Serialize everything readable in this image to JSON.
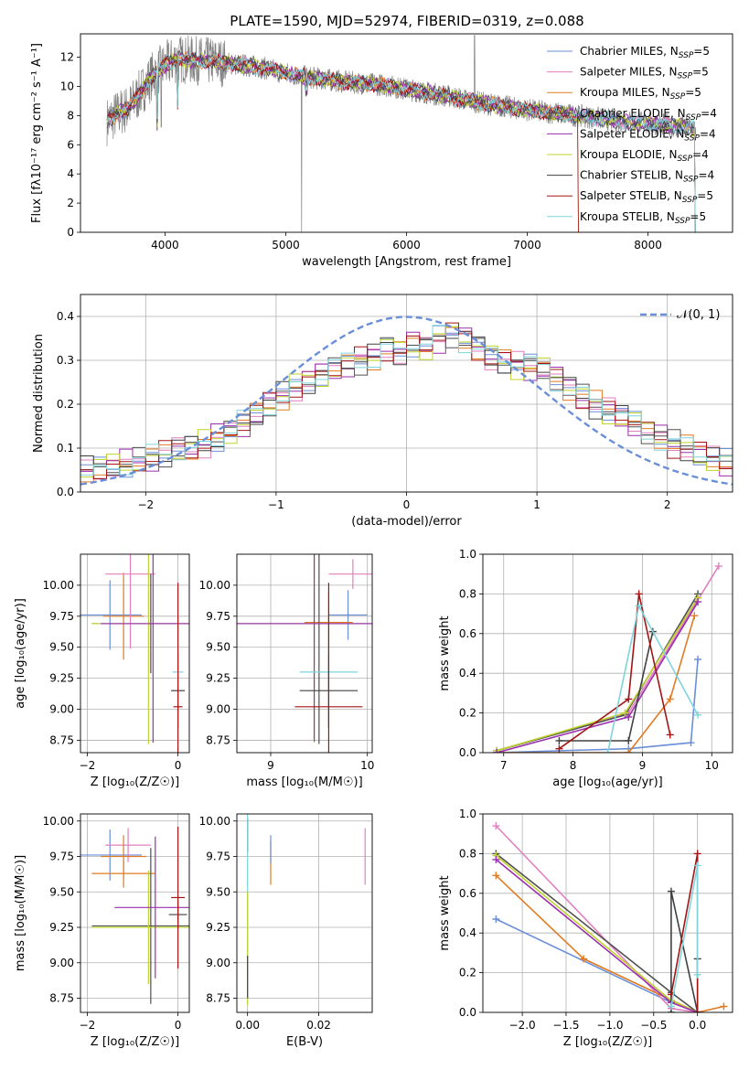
{
  "figure": {
    "title": "PLATE=1590, MJD=52974, FIBERID=0319, z=0.088"
  },
  "colors": [
    "#6a8fd8",
    "#e27fbf",
    "#e07b22",
    "#505050",
    "#9b2fae",
    "#bfd32e",
    "#404040",
    "#a31515",
    "#7fd4dc"
  ],
  "chart_data": [
    {
      "id": "spectrum",
      "type": "line",
      "xlabel": "wavelength [Angstrom, rest frame]",
      "ylabel": "Flux [fλ10⁻¹⁷ erg cm⁻² s⁻¹ A⁻¹]",
      "xlim": [
        3300,
        8700
      ],
      "ylim": [
        0,
        13.6
      ],
      "xticks": [
        4000,
        5000,
        6000,
        7000,
        8000
      ],
      "yticks": [
        0,
        2,
        4,
        6,
        8,
        10,
        12
      ],
      "grid": false,
      "legend": "top-right",
      "data_color": "#808080",
      "continuum": {
        "x": [
          3520,
          3600,
          3700,
          3800,
          3900,
          4000,
          4100,
          4200,
          4400,
          4600,
          4800,
          5000,
          5200,
          5500,
          5800,
          6000,
          6300,
          6600,
          6900,
          7200,
          7500,
          7800,
          8100,
          8400
        ],
        "y": [
          7.6,
          8.1,
          8.5,
          9.6,
          10.8,
          11.4,
          11.9,
          11.8,
          11.7,
          11.5,
          11.3,
          10.9,
          10.6,
          10.3,
          10.1,
          9.8,
          9.4,
          8.9,
          8.5,
          8.2,
          7.9,
          7.6,
          7.4,
          7.1
        ]
      },
      "series": [
        {
          "name": "Chabrier MILES, N_SSP=5"
        },
        {
          "name": "Salpeter MILES, N_SSP=5"
        },
        {
          "name": "Kroupa MILES, N_SSP=5"
        },
        {
          "name": "Chabrier ELODIE, N_SSP=4"
        },
        {
          "name": "Salpeter ELODIE, N_SSP=4"
        },
        {
          "name": "Kroupa ELODIE, N_SSP=4"
        },
        {
          "name": "Chabrier STELIB, N_SSP=4"
        },
        {
          "name": "Salpeter STELIB, N_SSP=5"
        },
        {
          "name": "Kroupa STELIB, N_SSP=5"
        }
      ],
      "legend_entries": [
        {
          "base": "Chabrier MILES, N",
          "sub": "SSP",
          "tail": "=5"
        },
        {
          "base": "Salpeter MILES, N",
          "sub": "SSP",
          "tail": "=5"
        },
        {
          "base": "Kroupa MILES, N",
          "sub": "SSP",
          "tail": "=5"
        },
        {
          "base": "Chabrier ELODIE, N",
          "sub": "SSP",
          "tail": "=4"
        },
        {
          "base": "Salpeter ELODIE, N",
          "sub": "SSP",
          "tail": "=4"
        },
        {
          "base": "Kroupa ELODIE, N",
          "sub": "SSP",
          "tail": "=4"
        },
        {
          "base": "Chabrier STELIB, N",
          "sub": "SSP",
          "tail": "=4"
        },
        {
          "base": "Salpeter STELIB, N",
          "sub": "SSP",
          "tail": "=5"
        },
        {
          "base": "Kroupa STELIB, N",
          "sub": "SSP",
          "tail": "=5"
        }
      ]
    },
    {
      "id": "residuals",
      "type": "area",
      "xlabel": "(data-model)/error",
      "ylabel": "Normed distribution",
      "xlim": [
        -2.5,
        2.5
      ],
      "ylim": [
        0,
        0.45
      ],
      "xticks": [
        -2,
        -1,
        0,
        1,
        2
      ],
      "xticklabels": [
        "−2",
        "−1",
        "0",
        "1",
        "2"
      ],
      "yticks": [
        0,
        0.1,
        0.2,
        0.3,
        0.4
      ],
      "yticklabels": [
        "0.0",
        "0.1",
        "0.2",
        "0.3",
        "0.4"
      ],
      "grid": true,
      "legend": "top-right",
      "gauss_label": "𝒩(0, 1)",
      "bin_width": 0.1,
      "bins_start": -2.5,
      "histogram_mean": [
        0.05,
        0.05,
        0.06,
        0.065,
        0.07,
        0.075,
        0.085,
        0.095,
        0.1,
        0.11,
        0.125,
        0.14,
        0.155,
        0.175,
        0.2,
        0.22,
        0.24,
        0.255,
        0.27,
        0.28,
        0.29,
        0.3,
        0.31,
        0.33,
        0.32,
        0.34,
        0.33,
        0.35,
        0.36,
        0.35,
        0.33,
        0.31,
        0.3,
        0.29,
        0.285,
        0.28,
        0.26,
        0.24,
        0.22,
        0.2,
        0.185,
        0.17,
        0.155,
        0.14,
        0.125,
        0.11,
        0.1,
        0.085,
        0.075,
        0.065,
        0.055
      ]
    },
    {
      "id": "age-vs-Z",
      "type": "scatter",
      "xlabel": "Z [log₁₀(Z/Z☉)]",
      "ylabel": "age  [log₁₀(age/yr)]",
      "xlim": [
        -2.15,
        0.25
      ],
      "ylim": [
        8.65,
        10.25
      ],
      "xticks": [
        -2,
        0
      ],
      "xticklabels": [
        "−2",
        "0"
      ],
      "yticks": [
        8.75,
        9.0,
        9.25,
        9.5,
        9.75,
        10.0
      ],
      "yticklabels": [
        "8.75",
        "9.00",
        "9.25",
        "9.50",
        "9.75",
        "10.00"
      ],
      "grid": true,
      "points": [
        {
          "x": -1.5,
          "y": 9.76,
          "xerr": 0.7,
          "yerr": 0.28,
          "c": 0
        },
        {
          "x": -1.2,
          "y": 9.75,
          "xerr": 0.45,
          "yerr": 0.35,
          "c": 2
        },
        {
          "x": -1.05,
          "y": 10.09,
          "xerr": 0.55,
          "yerr": 0.6,
          "c": 1
        },
        {
          "x": -0.6,
          "y": 9.69,
          "xerr": 1.3,
          "yerr": 0.4,
          "c": 3
        },
        {
          "x": -0.65,
          "y": 9.69,
          "xerr": 1.25,
          "yerr": 0.97,
          "c": 5
        },
        {
          "x": -0.55,
          "y": 9.69,
          "xerr": 1.15,
          "yerr": 0.96,
          "c": 4
        },
        {
          "x": 0.0,
          "y": 9.15,
          "xerr": 0.15,
          "yerr": 0.3,
          "c": 6
        },
        {
          "x": 0.0,
          "y": 9.3,
          "xerr": 0.12,
          "yerr": 0.45,
          "c": 8
        },
        {
          "x": 0.0,
          "y": 9.02,
          "xerr": 0.1,
          "yerr": 1.0,
          "c": 7
        }
      ]
    },
    {
      "id": "age-vs-mass",
      "type": "scatter",
      "xlabel": "mass [log₁₀(M/M☉)]",
      "ylabel": "",
      "xlim": [
        8.65,
        10.05
      ],
      "ylim": [
        8.65,
        10.25
      ],
      "xticks": [
        9,
        10
      ],
      "xticklabels": [
        "9",
        "10"
      ],
      "yticks": [
        8.75,
        9.0,
        9.25,
        9.5,
        9.75,
        10.0
      ],
      "yticklabels": [
        "8.75",
        "9.00",
        "9.25",
        "9.50",
        "9.75",
        "10.00"
      ],
      "grid": true,
      "points": [
        {
          "x": 9.85,
          "y": 10.09,
          "xerr": 0.25,
          "yerr": 0.12,
          "c": 1
        },
        {
          "x": 9.8,
          "y": 9.76,
          "xerr": 0.2,
          "yerr": 0.2,
          "c": 0
        },
        {
          "x": 9.6,
          "y": 9.7,
          "xerr": 0.25,
          "yerr": 0.25,
          "c": 2
        },
        {
          "x": 9.5,
          "y": 9.69,
          "xerr": 0.9,
          "yerr": 0.97,
          "c": 3
        },
        {
          "x": 9.45,
          "y": 9.69,
          "xerr": 0.85,
          "yerr": 0.96,
          "c": 5
        },
        {
          "x": 9.45,
          "y": 9.69,
          "xerr": 0.8,
          "yerr": 0.95,
          "c": 4
        },
        {
          "x": 9.6,
          "y": 9.3,
          "xerr": 0.3,
          "yerr": 0.45,
          "c": 8
        },
        {
          "x": 9.6,
          "y": 9.15,
          "xerr": 0.3,
          "yerr": 0.3,
          "c": 6
        },
        {
          "x": 9.6,
          "y": 9.02,
          "xerr": 0.35,
          "yerr": 1.0,
          "c": 7
        }
      ]
    },
    {
      "id": "weight-vs-age",
      "type": "line",
      "xlabel": "age  [log₁₀(age/yr)]",
      "ylabel": "mass weight",
      "xlim": [
        6.7,
        10.3
      ],
      "ylim": [
        0,
        1.0
      ],
      "xticks": [
        7,
        8,
        9,
        10
      ],
      "xticklabels": [
        "7",
        "8",
        "9",
        "10"
      ],
      "yticks": [
        0,
        0.2,
        0.4,
        0.6,
        0.8,
        1.0
      ],
      "yticklabels": [
        "0.0",
        "0.2",
        "0.4",
        "0.6",
        "0.8",
        "1.0"
      ],
      "grid": true,
      "series": [
        {
          "c": 0,
          "x": [
            6.9,
            8.8,
            9.7,
            9.8
          ],
          "y": [
            0.0,
            0.02,
            0.05,
            0.47
          ]
        },
        {
          "c": 1,
          "x": [
            6.9,
            8.8,
            10.1
          ],
          "y": [
            0.01,
            0.2,
            0.94
          ]
        },
        {
          "c": 2,
          "x": [
            6.9,
            8.8,
            9.4,
            9.75
          ],
          "y": [
            0.0,
            0.0,
            0.27,
            0.69
          ]
        },
        {
          "c": 3,
          "x": [
            6.9,
            8.75,
            9.8
          ],
          "y": [
            0.01,
            0.19,
            0.8
          ]
        },
        {
          "c": 5,
          "x": [
            6.9,
            8.75,
            9.8
          ],
          "y": [
            0.01,
            0.2,
            0.78
          ]
        },
        {
          "c": 4,
          "x": [
            6.9,
            8.8,
            9.8
          ],
          "y": [
            0.0,
            0.18,
            0.76
          ]
        },
        {
          "c": 6,
          "x": [
            7.8,
            8.8,
            9.15
          ],
          "y": [
            0.06,
            0.06,
            0.61
          ]
        },
        {
          "c": 7,
          "x": [
            7.8,
            8.8,
            8.95,
            9.4
          ],
          "y": [
            0.02,
            0.27,
            0.8,
            0.09
          ]
        },
        {
          "c": 8,
          "x": [
            8.5,
            8.95,
            9.8
          ],
          "y": [
            0.0,
            0.74,
            0.19
          ]
        }
      ]
    },
    {
      "id": "mass-vs-Z",
      "type": "scatter",
      "xlabel": "Z [log₁₀(Z/Z☉)]",
      "ylabel": "mass [log₁₀(M/M☉)]",
      "xlim": [
        -2.15,
        0.25
      ],
      "ylim": [
        8.65,
        10.05
      ],
      "xticks": [
        -2,
        0
      ],
      "xticklabels": [
        "−2",
        "0"
      ],
      "yticks": [
        8.75,
        9.0,
        9.25,
        9.5,
        9.75,
        10.0
      ],
      "yticklabels": [
        "8.75",
        "9.00",
        "9.25",
        "9.50",
        "9.75",
        "10.00"
      ],
      "grid": true,
      "points": [
        {
          "x": -1.5,
          "y": 9.76,
          "xerr": 0.7,
          "yerr": 0.18,
          "c": 0
        },
        {
          "x": -1.1,
          "y": 9.83,
          "xerr": 0.5,
          "yerr": 0.12,
          "c": 1
        },
        {
          "x": -1.2,
          "y": 9.75,
          "xerr": 0.5,
          "yerr": 0.15,
          "c": 2
        },
        {
          "x": -1.2,
          "y": 9.63,
          "xerr": 0.7,
          "yerr": 0.1,
          "c": 2
        },
        {
          "x": -0.6,
          "y": 9.26,
          "xerr": 1.3,
          "yerr": 0.55,
          "c": 3
        },
        {
          "x": -0.65,
          "y": 9.25,
          "xerr": 1.25,
          "yerr": 0.4,
          "c": 5
        },
        {
          "x": -0.5,
          "y": 9.39,
          "xerr": 0.9,
          "yerr": 0.5,
          "c": 4
        },
        {
          "x": 0.0,
          "y": 9.34,
          "xerr": 0.2,
          "yerr": 0.1,
          "c": 6
        },
        {
          "x": 0.0,
          "y": 9.46,
          "xerr": 0.15,
          "yerr": 0.5,
          "c": 7
        }
      ]
    },
    {
      "id": "mass-vs-ebv",
      "type": "scatter",
      "xlabel": "E(B-V)",
      "ylabel": "",
      "xlim": [
        -0.003,
        0.035
      ],
      "ylim": [
        8.65,
        10.05
      ],
      "xticks": [
        0.0,
        0.02
      ],
      "xticklabels": [
        "0.00",
        "0.02"
      ],
      "yticks": [
        8.75,
        9.0,
        9.25,
        9.5,
        9.75,
        10.0
      ],
      "yticklabels": [
        "8.75",
        "9.00",
        "9.25",
        "9.50",
        "9.75",
        "10.00"
      ],
      "grid": true,
      "points": [
        {
          "x": 0.0,
          "y": 9.9,
          "xerr": 0.0,
          "yerr": 0.12,
          "c": 7
        },
        {
          "x": 0.0,
          "y": 9.5,
          "xerr": 0.0,
          "yerr": 0.6,
          "c": 8
        },
        {
          "x": 0.0,
          "y": 9.1,
          "xerr": 0.0,
          "yerr": 0.4,
          "c": 5
        },
        {
          "x": 0.0,
          "y": 8.9,
          "xerr": 0.0,
          "yerr": 0.15,
          "c": 6
        },
        {
          "x": 0.0065,
          "y": 9.7,
          "xerr": 0.0,
          "yerr": 0.15,
          "c": 2
        },
        {
          "x": 0.0065,
          "y": 9.8,
          "xerr": 0.0,
          "yerr": 0.1,
          "c": 0
        },
        {
          "x": 0.033,
          "y": 9.75,
          "xerr": 0.0,
          "yerr": 0.2,
          "c": 1
        }
      ]
    },
    {
      "id": "weight-vs-Z",
      "type": "line",
      "xlabel": "Z [log₁₀(Z/Z☉)]",
      "ylabel": "mass weight",
      "xlim": [
        -2.45,
        0.4
      ],
      "ylim": [
        0,
        1.0
      ],
      "xticks": [
        -2.0,
        -1.5,
        -1.0,
        -0.5,
        0.0
      ],
      "xticklabels": [
        "−2.0",
        "−1.5",
        "−1.0",
        "−0.5",
        "0.0"
      ],
      "yticks": [
        0,
        0.2,
        0.4,
        0.6,
        0.8,
        1.0
      ],
      "yticklabels": [
        "0.0",
        "0.2",
        "0.4",
        "0.6",
        "0.8",
        "1.0"
      ],
      "grid": true,
      "series": [
        {
          "c": 0,
          "x": [
            -2.3,
            -0.3,
            0.0
          ],
          "y": [
            0.47,
            0.05,
            0.0
          ]
        },
        {
          "c": 1,
          "x": [
            -2.3,
            -0.3,
            0.0
          ],
          "y": [
            0.94,
            0.02,
            0.0
          ]
        },
        {
          "c": 2,
          "x": [
            -2.3,
            -1.3,
            0.0,
            0.3
          ],
          "y": [
            0.69,
            0.27,
            0.0,
            0.03
          ]
        },
        {
          "c": 3,
          "x": [
            -2.3,
            -0.3,
            0.0
          ],
          "y": [
            0.8,
            0.1,
            0.0
          ]
        },
        {
          "c": 5,
          "x": [
            -2.3,
            -0.3,
            0.0
          ],
          "y": [
            0.79,
            0.06,
            0.0
          ]
        },
        {
          "c": 4,
          "x": [
            -2.3,
            -0.3,
            0.0
          ],
          "y": [
            0.77,
            0.05,
            0.0
          ]
        },
        {
          "c": 6,
          "x": [
            -0.3,
            -0.3,
            0.0,
            0.0
          ],
          "y": [
            0.0,
            0.61,
            0.0,
            0.27
          ]
        },
        {
          "c": 7,
          "x": [
            -0.3,
            0.0,
            0.0
          ],
          "y": [
            0.09,
            0.8,
            0.0
          ]
        },
        {
          "c": 8,
          "x": [
            -0.3,
            0.0,
            0.0
          ],
          "y": [
            0.03,
            0.74,
            0.19
          ]
        }
      ]
    }
  ]
}
